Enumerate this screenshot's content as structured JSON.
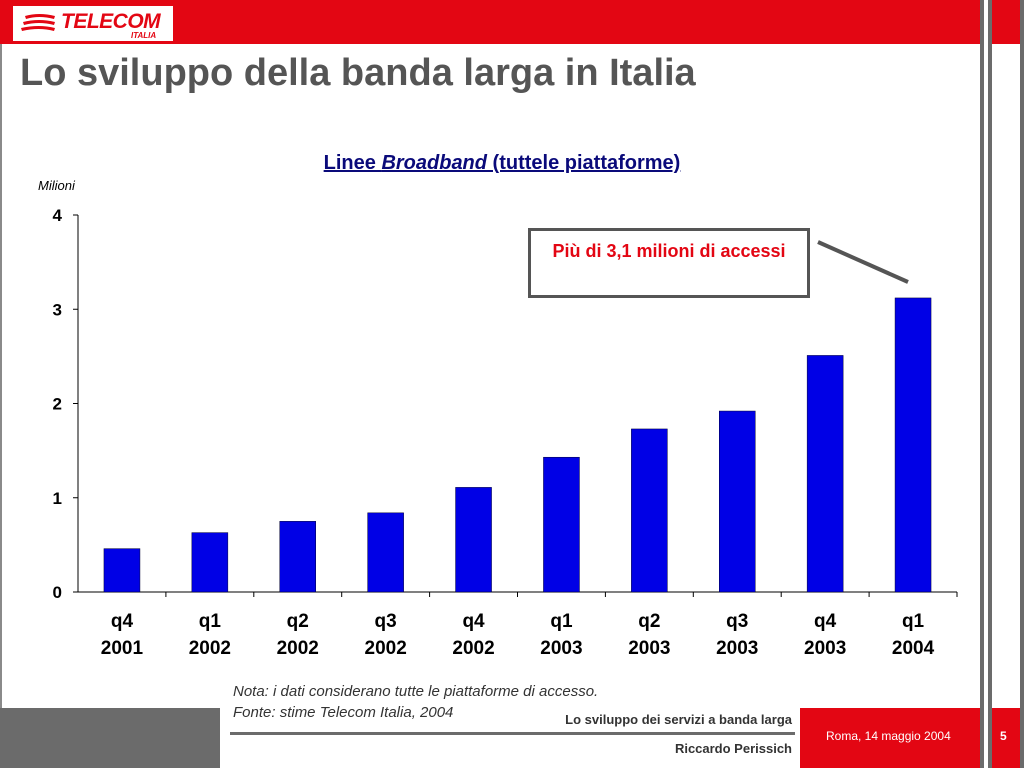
{
  "header": {
    "logo_text": "TELECOM",
    "logo_sub": "ITALIA",
    "page_title": "Lo sviluppo della banda larga in Italia"
  },
  "chart_data": {
    "type": "bar",
    "title_prefix": "Linee ",
    "title_italic": "Broadband",
    "title_suffix": " (tuttele piattaforme)",
    "y_unit": "Milioni",
    "categories": [
      "q4\n2001",
      "q1\n2002",
      "q2\n2002",
      "q3\n2002",
      "q4\n2002",
      "q1\n2003",
      "q2\n2003",
      "q3\n2003",
      "q4\n2003",
      "q1\n2004"
    ],
    "values": [
      0.46,
      0.63,
      0.75,
      0.84,
      1.11,
      1.43,
      1.73,
      1.92,
      2.51,
      3.12
    ],
    "ylim": [
      0,
      4
    ],
    "yticks": [
      0,
      1,
      2,
      3,
      4
    ],
    "bar_color": "#0000e6",
    "annotation": "Più di 3,1 milioni di accessi"
  },
  "footnote": {
    "line1": "Nota: i dati considerano tutte le piattaforme di accesso.",
    "line2": "Fonte: stime Telecom Italia, 2004"
  },
  "footer": {
    "presentation_title": "Lo sviluppo dei servizi a banda larga",
    "author": "Riccardo Perissich",
    "date": "Roma, 14 maggio  2004",
    "page_number": "5"
  },
  "colors": {
    "brand_red": "#e30613",
    "gray": "#6b6b6b",
    "title_blue": "#0a0a7a"
  }
}
